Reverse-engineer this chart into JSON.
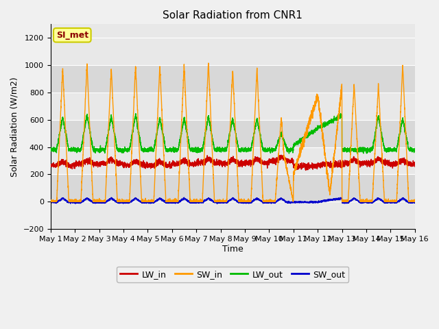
{
  "title": "Solar Radiation from CNR1",
  "xlabel": "Time",
  "ylabel": "Solar Radiation (W/m2)",
  "ylim": [
    -200,
    1300
  ],
  "ylim_display": [
    -200,
    1200
  ],
  "yticks": [
    -200,
    0,
    200,
    400,
    600,
    800,
    1000,
    1200
  ],
  "fig_bg": "#f0f0f0",
  "plot_bg": "#e8e8e8",
  "band_colors": [
    "#e0e0e0",
    "#d0d0d0"
  ],
  "grid_color": "#ffffff",
  "colors": {
    "LW_in": "#cc0000",
    "SW_in": "#ff9900",
    "LW_out": "#00bb00",
    "SW_out": "#0000cc"
  },
  "si_met_label": "SI_met",
  "si_met_color": "#8b0000",
  "si_met_bg": "#ffff99",
  "si_met_border": "#cccc00",
  "num_days": 15,
  "points_per_day": 288,
  "legend_fontsize": 9,
  "title_fontsize": 11,
  "axis_fontsize": 9,
  "tick_fontsize": 8
}
